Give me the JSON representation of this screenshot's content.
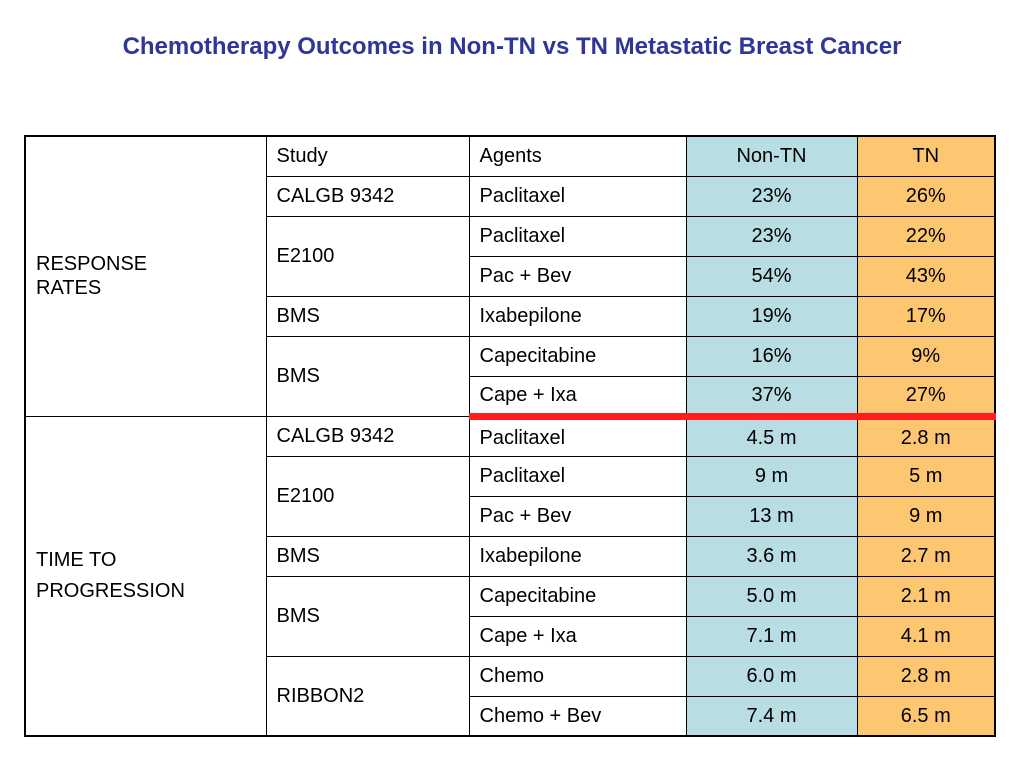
{
  "title": "Chemotherapy Outcomes in Non-TN vs TN Metastatic Breast Cancer",
  "colors": {
    "title": "#2f3699",
    "non_tn_column": "#b8dde3",
    "tn_column": "#fdc771",
    "divider": "#ff1e1e"
  },
  "table": {
    "headers": {
      "study": "Study",
      "agents": "Agents",
      "non_tn": "Non-TN",
      "tn": "TN"
    },
    "response_rates": {
      "label_line1": "RESPONSE",
      "label_line2": "RATES",
      "rows": [
        {
          "study": "CALGB 9342",
          "agent": "Paclitaxel",
          "non_tn": "23%",
          "tn": "26%"
        },
        {
          "study": "E2100",
          "agent": "Paclitaxel",
          "non_tn": "23%",
          "tn": "22%"
        },
        {
          "study": "",
          "agent": "Pac + Bev",
          "non_tn": "54%",
          "tn": "43%"
        },
        {
          "study": "BMS",
          "agent": "Ixabepilone",
          "non_tn": "19%",
          "tn": "17%"
        },
        {
          "study": "BMS",
          "agent": "Capecitabine",
          "non_tn": "16%",
          "tn": "9%"
        },
        {
          "study": "",
          "agent": "Cape + Ixa",
          "non_tn": "37%",
          "tn": "27%"
        }
      ]
    },
    "time_to_progression": {
      "label_line1": "TIME TO",
      "label_line2": "PROGRESSION",
      "rows": [
        {
          "study": "CALGB 9342",
          "agent": "Paclitaxel",
          "non_tn": "4.5 m",
          "tn": "2.8 m"
        },
        {
          "study": "E2100",
          "agent": "Paclitaxel",
          "non_tn": "9 m",
          "tn": "5 m"
        },
        {
          "study": "",
          "agent": "Pac + Bev",
          "non_tn": "13 m",
          "tn": "9 m"
        },
        {
          "study": "BMS",
          "agent": "Ixabepilone",
          "non_tn": "3.6 m",
          "tn": "2.7 m"
        },
        {
          "study": "BMS",
          "agent": "Capecitabine",
          "non_tn": "5.0 m",
          "tn": "2.1 m"
        },
        {
          "study": "",
          "agent": "Cape + Ixa",
          "non_tn": "7.1 m",
          "tn": "4.1 m"
        },
        {
          "study": "RIBBON2",
          "agent": "Chemo",
          "non_tn": "6.0 m",
          "tn": "2.8 m"
        },
        {
          "study": "",
          "agent": "Chemo + Bev",
          "non_tn": "7.4 m",
          "tn": "6.5 m"
        }
      ]
    }
  }
}
